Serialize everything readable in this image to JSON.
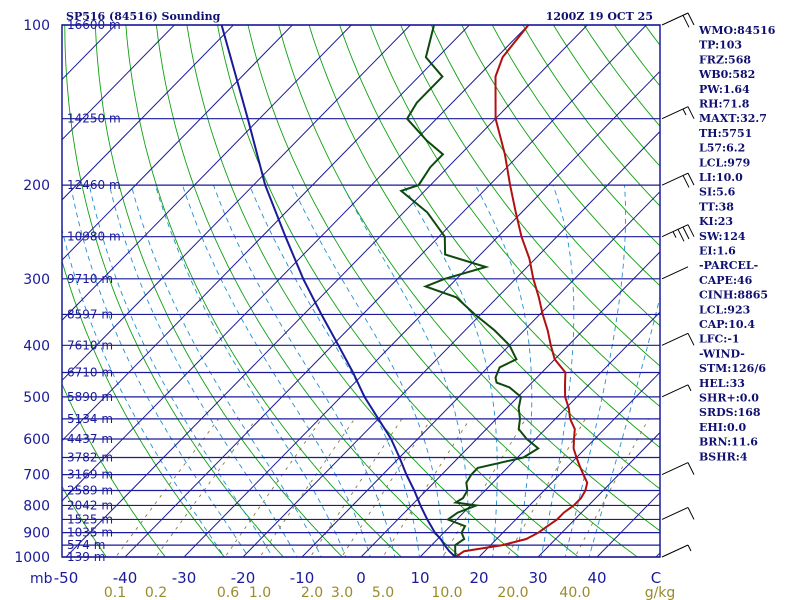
{
  "chart_data": {
    "type": "line",
    "title": "SP516 (84516) Sounding",
    "valid_time": "1200Z 19 OCT 25",
    "pressure_labels": [
      "100",
      "200",
      "300",
      "400",
      "500",
      "600",
      "700",
      "800",
      "900",
      "1000"
    ],
    "pressure_unit": "mb",
    "height_labels": [
      {
        "p": 100,
        "label": "16600 m"
      },
      {
        "p": 150,
        "label": "14250 m"
      },
      {
        "p": 200,
        "label": "12460 m"
      },
      {
        "p": 250,
        "label": "10980 m"
      },
      {
        "p": 300,
        "label": "9710 m"
      },
      {
        "p": 350,
        "label": "8597 m"
      },
      {
        "p": 400,
        "label": "7610 m"
      },
      {
        "p": 450,
        "label": "6710 m"
      },
      {
        "p": 500,
        "label": "5890 m"
      },
      {
        "p": 550,
        "label": "5134 m"
      },
      {
        "p": 600,
        "label": "4437 m"
      },
      {
        "p": 650,
        "label": "3782 m"
      },
      {
        "p": 700,
        "label": "3169 m"
      },
      {
        "p": 750,
        "label": "2589 m"
      },
      {
        "p": 800,
        "label": "2042 m"
      },
      {
        "p": 850,
        "label": "1525 m"
      },
      {
        "p": 900,
        "label": "1035 m"
      },
      {
        "p": 950,
        "label": "574 m"
      },
      {
        "p": 1000,
        "label": "139 m"
      }
    ],
    "temperature_ticks": [
      "-50",
      "-40",
      "-30",
      "-20",
      "-10",
      "0",
      "10",
      "20",
      "30",
      "40",
      "C"
    ],
    "mixing_ratio_labels": [
      "0.1",
      "0.2",
      "0.6",
      "1.0",
      "2.0",
      "3.0",
      "5.0",
      "10.0",
      "20.0",
      "40.0",
      "g/kg"
    ],
    "xlim_at_1000mb": [
      -50,
      50
    ],
    "ylim": [
      1000,
      100
    ],
    "y_scale": "log-pressure",
    "skew": "skew-T",
    "series": [
      {
        "color": "#b01010",
        "points": [
          [
            1000,
            16.0
          ],
          [
            975,
            16.5
          ],
          [
            950,
            22.0
          ],
          [
            925,
            25.0
          ],
          [
            900,
            26.0
          ],
          [
            875,
            26.5
          ],
          [
            850,
            27.0
          ],
          [
            825,
            27.0
          ],
          [
            800,
            27.5
          ],
          [
            775,
            27.5
          ],
          [
            750,
            27.0
          ],
          [
            725,
            26.0
          ],
          [
            700,
            24.0
          ],
          [
            675,
            22.0
          ],
          [
            650,
            20.0
          ],
          [
            625,
            18.0
          ],
          [
            600,
            16.5
          ],
          [
            575,
            15.0
          ],
          [
            550,
            12.5
          ],
          [
            525,
            10.5
          ],
          [
            500,
            8.0
          ],
          [
            475,
            6.0
          ],
          [
            450,
            4.0
          ],
          [
            425,
            0.0
          ],
          [
            400,
            -3.0
          ],
          [
            375,
            -6.0
          ],
          [
            350,
            -9.5
          ],
          [
            325,
            -13.0
          ],
          [
            300,
            -17.0
          ],
          [
            275,
            -21.0
          ],
          [
            250,
            -26.0
          ],
          [
            225,
            -31.0
          ],
          [
            200,
            -36.5
          ],
          [
            175,
            -42.5
          ],
          [
            150,
            -50.0
          ],
          [
            125,
            -57.0
          ],
          [
            115,
            -59.0
          ],
          [
            100,
            -60.0
          ]
        ]
      },
      {
        "color": "#0e4a0e",
        "points": [
          [
            1000,
            16.0
          ],
          [
            975,
            15.0
          ],
          [
            950,
            14.0
          ],
          [
            925,
            14.5
          ],
          [
            900,
            13.0
          ],
          [
            875,
            12.5
          ],
          [
            850,
            8.5
          ],
          [
            825,
            9.0
          ],
          [
            800,
            11.0
          ],
          [
            790,
            7.0
          ],
          [
            775,
            7.5
          ],
          [
            750,
            7.0
          ],
          [
            725,
            5.5
          ],
          [
            700,
            5.0
          ],
          [
            680,
            5.0
          ],
          [
            650,
            11.0
          ],
          [
            625,
            12.0
          ],
          [
            600,
            8.5
          ],
          [
            575,
            5.5
          ],
          [
            550,
            4.0
          ],
          [
            525,
            2.0
          ],
          [
            500,
            0.5
          ],
          [
            480,
            -3.0
          ],
          [
            470,
            -6.0
          ],
          [
            460,
            -7.0
          ],
          [
            440,
            -8.0
          ],
          [
            425,
            -6.5
          ],
          [
            400,
            -10.0
          ],
          [
            375,
            -15.0
          ],
          [
            350,
            -21.0
          ],
          [
            325,
            -27.0
          ],
          [
            310,
            -34.0
          ],
          [
            300,
            -32.0
          ],
          [
            285,
            -27.0
          ],
          [
            270,
            -36.0
          ],
          [
            250,
            -39.0
          ],
          [
            225,
            -46.0
          ],
          [
            205,
            -54.0
          ],
          [
            200,
            -52.0
          ],
          [
            185,
            -53.0
          ],
          [
            175,
            -53.0
          ],
          [
            165,
            -58.0
          ],
          [
            150,
            -65.0
          ],
          [
            140,
            -66.0
          ],
          [
            125,
            -66.0
          ],
          [
            115,
            -72.0
          ],
          [
            100,
            -76.0
          ]
        ]
      },
      {
        "color": "#1a1a9a",
        "points": [
          [
            1000,
            16.0
          ],
          [
            975,
            14.0
          ],
          [
            950,
            12.2
          ],
          [
            925,
            10.5
          ],
          [
            900,
            8.5
          ],
          [
            850,
            5.0
          ],
          [
            800,
            1.5
          ],
          [
            750,
            -2.0
          ],
          [
            700,
            -6.0
          ],
          [
            650,
            -10.0
          ],
          [
            600,
            -14.5
          ],
          [
            550,
            -20.0
          ],
          [
            500,
            -26.0
          ],
          [
            450,
            -32.0
          ],
          [
            400,
            -39.0
          ],
          [
            350,
            -47.0
          ],
          [
            300,
            -56.0
          ],
          [
            250,
            -66.0
          ],
          [
            200,
            -78.0
          ],
          [
            150,
            -92.0
          ],
          [
            100,
            -112.0
          ]
        ]
      }
    ],
    "wind_barbs": [
      {
        "p": 100,
        "speed": 20
      },
      {
        "p": 150,
        "speed": 15
      },
      {
        "p": 200,
        "speed": 20
      },
      {
        "p": 250,
        "speed": 35
      },
      {
        "p": 300,
        "speed": 0
      },
      {
        "p": 400,
        "speed": 10
      },
      {
        "p": 500,
        "speed": 5
      },
      {
        "p": 700,
        "speed": 10
      },
      {
        "p": 850,
        "speed": 10
      },
      {
        "p": 1000,
        "speed": 5
      }
    ]
  },
  "indices": [
    "WMO:84516",
    "TP:103",
    "FRZ:568",
    "WB0:582",
    "PW:1.64",
    "RH:71.8",
    "MAXT:32.7",
    "TH:5751",
    "L57:6.2",
    "LCL:979",
    "LI:10.0",
    "SI:5.6",
    "TT:38",
    "KI:23",
    "SW:124",
    "EI:1.6",
    "-PARCEL-",
    "CAPE:46",
    "CINH:8865",
    "LCL:923",
    "CAP:10.4",
    "LFC:-1",
    "-WIND-",
    "STM:126/6",
    "HEL:33",
    "SHR+:0.0",
    "SRDS:168",
    "EHI:0.0",
    "BRN:11.6",
    "BSHR:4"
  ],
  "colors": {
    "frame": "#1a1a9a",
    "isobar": "#1a1a9a",
    "isotherm": "#1a1a9a",
    "dry_adiabat": "#10a010",
    "moist_adiabat": "#2090d0",
    "mixing_ratio": "#8a7a40",
    "mixing_ratio_label": "#9a8a2a"
  }
}
